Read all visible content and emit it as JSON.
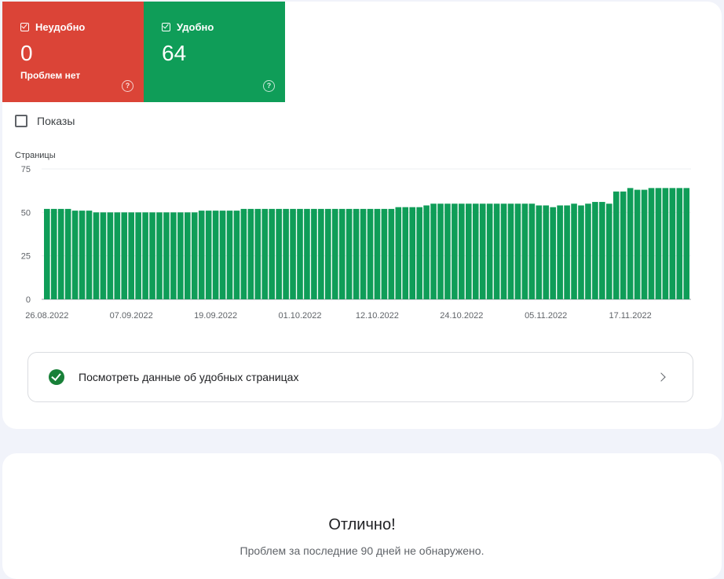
{
  "tiles": {
    "bad": {
      "label": "Неудобно",
      "value": "0",
      "sub": "Проблем нет",
      "color": "#db4437"
    },
    "good": {
      "label": "Удобно",
      "value": "64",
      "color": "#0f9d58"
    }
  },
  "impressions": {
    "label": "Показы",
    "checked": false
  },
  "chart_data": {
    "type": "bar",
    "ylabel": "Страницы",
    "ylim": [
      0,
      75
    ],
    "yticks": [
      75,
      50,
      25,
      0
    ],
    "xtick_labels": [
      "26.08.2022",
      "07.09.2022",
      "19.09.2022",
      "01.10.2022",
      "12.10.2022",
      "24.10.2022",
      "05.11.2022",
      "17.11.2022"
    ],
    "xtick_indices": [
      0,
      12,
      24,
      36,
      47,
      59,
      71,
      83
    ],
    "color": "#0f9d58",
    "values": [
      52,
      52,
      52,
      52,
      51,
      51,
      51,
      50,
      50,
      50,
      50,
      50,
      50,
      50,
      50,
      50,
      50,
      50,
      50,
      50,
      50,
      50,
      51,
      51,
      51,
      51,
      51,
      51,
      52,
      52,
      52,
      52,
      52,
      52,
      52,
      52,
      52,
      52,
      52,
      52,
      52,
      52,
      52,
      52,
      52,
      52,
      52,
      52,
      52,
      52,
      53,
      53,
      53,
      53,
      54,
      55,
      55,
      55,
      55,
      55,
      55,
      55,
      55,
      55,
      55,
      55,
      55,
      55,
      55,
      55,
      54,
      54,
      53,
      54,
      54,
      55,
      54,
      55,
      56,
      56,
      55,
      62,
      62,
      64,
      63,
      63,
      64,
      64,
      64,
      64,
      64,
      64
    ]
  },
  "view_link": {
    "label": "Посмотреть данные об удобных страницах"
  },
  "summary": {
    "title": "Отлично!",
    "subtitle": "Проблем за последние 90 дней не обнаружено."
  }
}
